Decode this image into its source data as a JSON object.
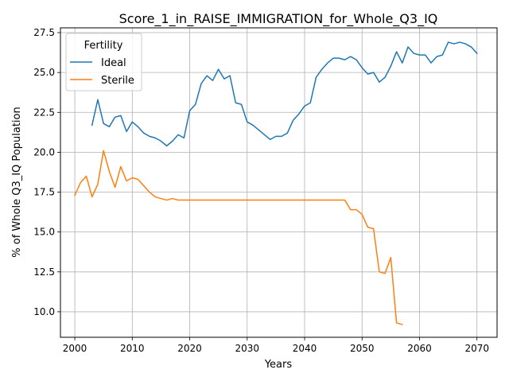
{
  "chart_data": {
    "type": "line",
    "title": "Score_1_in_RAISE_IMMIGRATION_for_Whole_Q3_IQ",
    "xlabel": "Years",
    "ylabel": "% of Whole Q3_IQ Population",
    "xlim": [
      1997.5,
      2073.5
    ],
    "ylim": [
      8.4,
      27.8
    ],
    "xticks": [
      2000,
      2010,
      2020,
      2030,
      2040,
      2050,
      2060,
      2070
    ],
    "yticks": [
      10.0,
      12.5,
      15.0,
      17.5,
      20.0,
      22.5,
      25.0,
      27.5
    ],
    "xtick_labels": [
      "2000",
      "2010",
      "2020",
      "2030",
      "2040",
      "2050",
      "2060",
      "2070"
    ],
    "ytick_labels": [
      "10.0",
      "12.5",
      "15.0",
      "17.5",
      "20.0",
      "22.5",
      "25.0",
      "27.5"
    ],
    "grid": true,
    "legend": {
      "title": "Fertility",
      "placement": "top-left"
    },
    "series": [
      {
        "name": "Ideal",
        "color": "#1f77b4",
        "x": [
          2003,
          2004,
          2005,
          2006,
          2007,
          2008,
          2009,
          2010,
          2011,
          2012,
          2013,
          2014,
          2015,
          2016,
          2017,
          2018,
          2019,
          2020,
          2021,
          2022,
          2023,
          2024,
          2025,
          2026,
          2027,
          2028,
          2029,
          2030,
          2031,
          2032,
          2033,
          2034,
          2035,
          2036,
          2037,
          2038,
          2039,
          2040,
          2041,
          2042,
          2043,
          2044,
          2045,
          2046,
          2047,
          2048,
          2049,
          2050,
          2051,
          2052,
          2053,
          2054,
          2055,
          2056,
          2057,
          2058,
          2059,
          2060,
          2061,
          2062,
          2063,
          2064,
          2065,
          2066,
          2067,
          2068,
          2069,
          2070
        ],
        "y": [
          21.7,
          23.3,
          21.8,
          21.6,
          22.2,
          22.3,
          21.3,
          21.9,
          21.6,
          21.2,
          21.0,
          20.9,
          20.7,
          20.4,
          20.7,
          21.1,
          20.9,
          22.6,
          23.0,
          24.3,
          24.8,
          24.5,
          25.2,
          24.6,
          24.8,
          23.1,
          23.0,
          21.9,
          21.7,
          21.4,
          21.1,
          20.8,
          21.0,
          21.0,
          21.2,
          22.0,
          22.4,
          22.9,
          23.1,
          24.7,
          25.2,
          25.6,
          25.9,
          25.9,
          25.8,
          26.0,
          25.8,
          25.3,
          24.9,
          25.0,
          24.4,
          24.7,
          25.4,
          26.3,
          25.6,
          26.6,
          26.2,
          26.1,
          26.1,
          25.6,
          26.0,
          26.1,
          26.9,
          26.8,
          26.9,
          26.8,
          26.6,
          26.2
        ]
      },
      {
        "name": "Sterile",
        "color": "#ff7f0e",
        "x": [
          2000,
          2001,
          2002,
          2003,
          2004,
          2005,
          2006,
          2007,
          2008,
          2009,
          2010,
          2011,
          2012,
          2013,
          2014,
          2015,
          2016,
          2017,
          2018,
          2019,
          2020,
          2021,
          2022,
          2023,
          2024,
          2025,
          2026,
          2027,
          2028,
          2029,
          2030,
          2031,
          2032,
          2033,
          2034,
          2035,
          2036,
          2037,
          2038,
          2039,
          2040,
          2041,
          2042,
          2043,
          2044,
          2045,
          2046,
          2047,
          2048,
          2049,
          2050,
          2051,
          2052,
          2053,
          2054,
          2055,
          2056,
          2057
        ],
        "y": [
          17.3,
          18.1,
          18.5,
          17.2,
          18.0,
          20.1,
          18.8,
          17.8,
          19.1,
          18.2,
          18.4,
          18.3,
          17.9,
          17.5,
          17.2,
          17.1,
          17.0,
          17.1,
          17.0,
          17.0,
          17.0,
          17.0,
          17.0,
          17.0,
          17.0,
          17.0,
          17.0,
          17.0,
          17.0,
          17.0,
          17.0,
          17.0,
          17.0,
          17.0,
          17.0,
          17.0,
          17.0,
          17.0,
          17.0,
          17.0,
          17.0,
          17.0,
          17.0,
          17.0,
          17.0,
          17.0,
          17.0,
          17.0,
          16.4,
          16.4,
          16.1,
          15.3,
          15.2,
          12.5,
          12.4,
          13.4,
          9.3,
          9.2
        ]
      }
    ]
  }
}
